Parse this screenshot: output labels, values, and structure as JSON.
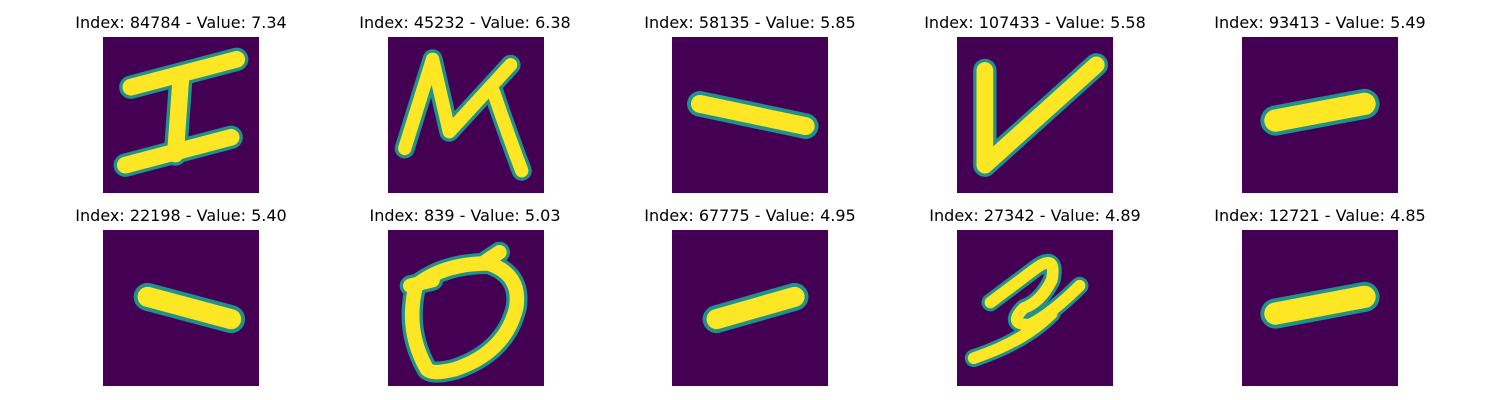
{
  "colors": {
    "background": "#440154",
    "mid": "#21918c",
    "light": "#35b779",
    "stroke": "#fde725"
  },
  "panels": [
    {
      "title": "Index: 84784 - Value: 7.34",
      "glyph": "I-shape"
    },
    {
      "title": "Index: 45232 - Value: 6.38",
      "glyph": "N-shape"
    },
    {
      "title": "Index: 58135 - Value: 5.85",
      "glyph": "dash"
    },
    {
      "title": "Index: 107433 - Value: 5.58",
      "glyph": "V-shape"
    },
    {
      "title": "Index: 93413 - Value: 5.49",
      "glyph": "thick-dash"
    },
    {
      "title": "Index: 22198 - Value: 5.40",
      "glyph": "dash"
    },
    {
      "title": "Index: 839 - Value: 5.03",
      "glyph": "zero"
    },
    {
      "title": "Index: 67775 - Value: 4.95",
      "glyph": "dash"
    },
    {
      "title": "Index: 27342 - Value: 4.89",
      "glyph": "two-shape"
    },
    {
      "title": "Index: 12721 - Value: 4.85",
      "glyph": "thick-dash"
    }
  ]
}
